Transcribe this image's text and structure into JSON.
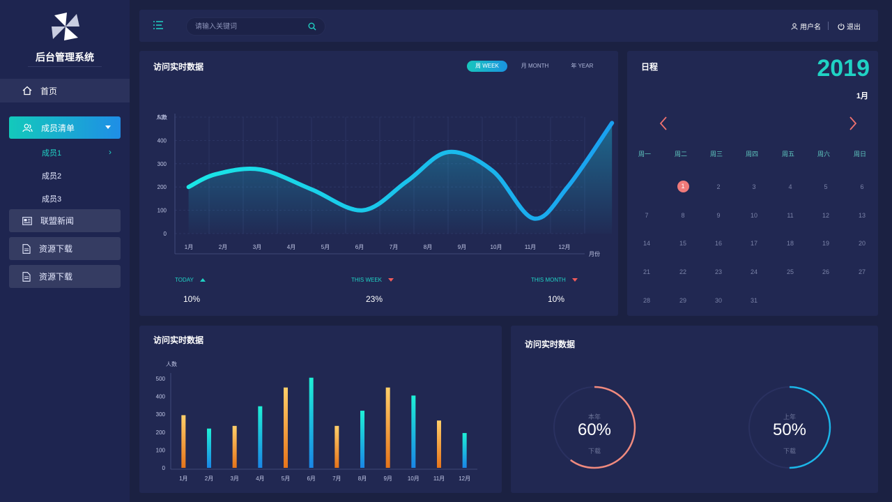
{
  "app": {
    "title": "后台管理系统"
  },
  "sidebar": {
    "home": "首页",
    "members": "成员清单",
    "sub_items": [
      "成员1",
      "成员2",
      "成员3"
    ],
    "news": "联盟新闻",
    "download1": "资源下载",
    "download2": "资源下载"
  },
  "topbar": {
    "search_placeholder": "请输入关键词",
    "user": "用户名",
    "logout": "退出"
  },
  "line_panel": {
    "title": "访问实时数据",
    "tabs": [
      "周  WEEK",
      "月  MONTH",
      "年  YEAR"
    ],
    "active_tab": 0,
    "stats": [
      {
        "label": "TODAY",
        "trend": "up",
        "value": "10%"
      },
      {
        "label": "THIS  WEEK",
        "trend": "down",
        "value": "23%"
      },
      {
        "label": "THIS  MONTH",
        "trend": "down",
        "value": "10%"
      }
    ]
  },
  "calendar": {
    "title": "日程",
    "year": "2019",
    "month": "1月",
    "weekdays": [
      "周一",
      "周二",
      "周三",
      "周四",
      "周五",
      "周六",
      "周日"
    ],
    "days": [
      "1",
      "2",
      "3",
      "4",
      "5",
      "6",
      "7",
      "8",
      "9",
      "10",
      "11",
      "12",
      "13",
      "14",
      "15",
      "16",
      "17",
      "18",
      "19",
      "20",
      "21",
      "22",
      "23",
      "24",
      "25",
      "26",
      "27",
      "28",
      "29",
      "30",
      "31"
    ],
    "today": "1",
    "first_weekday_index": 1
  },
  "bar_panel": {
    "title": "访问实时数据"
  },
  "gauge_panel": {
    "title": "访问实时数据",
    "gauges": [
      {
        "top": "本年",
        "value": "60%",
        "bottom": "下载",
        "percent": 60,
        "color": "#f08a7e"
      },
      {
        "top": "上年",
        "value": "50%",
        "bottom": "下载",
        "percent": 50,
        "color": "#1cb6e8"
      }
    ]
  },
  "chart_data": [
    {
      "type": "area",
      "title": "访问实时数据",
      "ylabel": "人数",
      "xlabel": "月份",
      "categories": [
        "1月",
        "2月",
        "3月",
        "4月",
        "5月",
        "6月",
        "7月",
        "8月",
        "9月",
        "10月",
        "11月",
        "12月"
      ],
      "x": [
        0.4,
        1.2,
        2.5,
        4.0,
        5.5,
        6.8,
        8.0,
        9.3,
        10.5,
        11.5,
        12.8
      ],
      "values": [
        200,
        255,
        275,
        190,
        100,
        225,
        350,
        270,
        65,
        200,
        475
      ],
      "ylim": [
        0,
        500
      ],
      "yticks": [
        0,
        100,
        200,
        300,
        400,
        500
      ]
    },
    {
      "type": "bar",
      "title": "访问实时数据",
      "ylabel": "人数",
      "categories": [
        "1月",
        "2月",
        "3月",
        "4月",
        "5月",
        "6月",
        "7月",
        "8月",
        "9月",
        "10月",
        "11月",
        "12月"
      ],
      "values": [
        295,
        220,
        235,
        345,
        450,
        505,
        235,
        320,
        450,
        405,
        265,
        195
      ],
      "ylim": [
        0,
        500
      ],
      "yticks": [
        0,
        100,
        200,
        300,
        400,
        500
      ]
    }
  ]
}
